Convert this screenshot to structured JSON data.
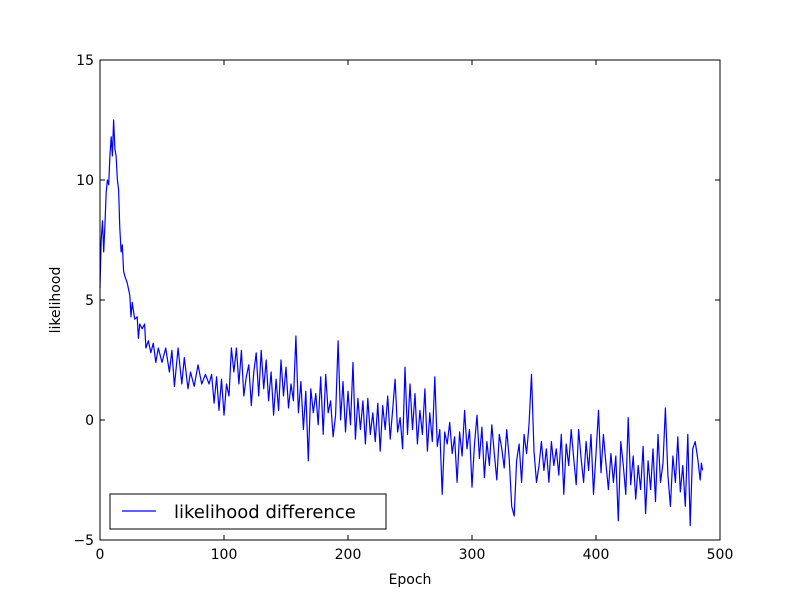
{
  "chart_data": {
    "type": "line",
    "xlabel": "Epoch",
    "ylabel": "likelihood",
    "xlim": [
      0,
      500
    ],
    "ylim": [
      -5,
      15
    ],
    "xticks": [
      0,
      100,
      200,
      300,
      400,
      500
    ],
    "yticks": [
      -5,
      0,
      5,
      10,
      15
    ],
    "grid": false,
    "legend_position": "lower-left",
    "series": [
      {
        "name": "likelihood difference",
        "color": "#0000ff",
        "anchors": [
          [
            0,
            5.5
          ],
          [
            1,
            7.5
          ],
          [
            2,
            8.3
          ],
          [
            3,
            7.0
          ],
          [
            4,
            8.2
          ],
          [
            5,
            9.5
          ],
          [
            6,
            10.0
          ],
          [
            7,
            9.8
          ],
          [
            8,
            11.0
          ],
          [
            9,
            11.8
          ],
          [
            10,
            11.0
          ],
          [
            11,
            12.5
          ],
          [
            12,
            11.3
          ],
          [
            13,
            11.0
          ],
          [
            14,
            10.0
          ],
          [
            15,
            9.6
          ],
          [
            16,
            8.0
          ],
          [
            17,
            7.0
          ],
          [
            18,
            7.3
          ],
          [
            19,
            6.2
          ],
          [
            20,
            6.0
          ],
          [
            22,
            5.7
          ],
          [
            24,
            5.2
          ],
          [
            25,
            4.3
          ],
          [
            26,
            4.9
          ],
          [
            28,
            4.2
          ],
          [
            30,
            4.3
          ],
          [
            31,
            3.4
          ],
          [
            32,
            4.0
          ],
          [
            34,
            3.8
          ],
          [
            36,
            4.0
          ],
          [
            37,
            3.0
          ],
          [
            39,
            3.3
          ],
          [
            41,
            2.8
          ],
          [
            43,
            3.2
          ],
          [
            45,
            2.4
          ],
          [
            47,
            3.0
          ],
          [
            50,
            2.4
          ],
          [
            53,
            3.0
          ],
          [
            56,
            2.0
          ],
          [
            58,
            2.9
          ],
          [
            60,
            1.4
          ],
          [
            63,
            3.0
          ],
          [
            66,
            1.5
          ],
          [
            68,
            2.6
          ],
          [
            71,
            1.3
          ],
          [
            73,
            2.0
          ],
          [
            76,
            1.4
          ],
          [
            79,
            2.3
          ],
          [
            82,
            1.5
          ],
          [
            85,
            1.9
          ],
          [
            88,
            1.5
          ],
          [
            90,
            1.9
          ],
          [
            92,
            0.7
          ],
          [
            94,
            1.8
          ],
          [
            96,
            0.4
          ],
          [
            98,
            1.7
          ],
          [
            100,
            0.2
          ],
          [
            102,
            1.5
          ],
          [
            104,
            1.0
          ],
          [
            106,
            3.0
          ],
          [
            108,
            2.0
          ],
          [
            110,
            3.0
          ],
          [
            112,
            1.5
          ],
          [
            114,
            2.9
          ],
          [
            116,
            1.0
          ],
          [
            118,
            1.8
          ],
          [
            120,
            2.3
          ],
          [
            122,
            0.6
          ],
          [
            124,
            2.0
          ],
          [
            126,
            2.8
          ],
          [
            128,
            1.0
          ],
          [
            130,
            2.9
          ],
          [
            132,
            1.3
          ],
          [
            134,
            2.5
          ],
          [
            136,
            0.8
          ],
          [
            138,
            2.0
          ],
          [
            140,
            0.2
          ],
          [
            142,
            1.7
          ],
          [
            144,
            0.4
          ],
          [
            146,
            2.5
          ],
          [
            148,
            1.0
          ],
          [
            150,
            2.2
          ],
          [
            152,
            0.5
          ],
          [
            154,
            1.5
          ],
          [
            156,
            0.8
          ],
          [
            158,
            3.5
          ],
          [
            160,
            0.3
          ],
          [
            162,
            1.6
          ],
          [
            164,
            -0.4
          ],
          [
            166,
            1.2
          ],
          [
            168,
            -1.7
          ],
          [
            170,
            1.3
          ],
          [
            172,
            0.3
          ],
          [
            174,
            1.1
          ],
          [
            176,
            -0.2
          ],
          [
            178,
            1.8
          ],
          [
            180,
            -0.6
          ],
          [
            182,
            1.9
          ],
          [
            184,
            0.3
          ],
          [
            186,
            0.8
          ],
          [
            188,
            -0.7
          ],
          [
            190,
            0.2
          ],
          [
            192,
            3.3
          ],
          [
            194,
            0.0
          ],
          [
            196,
            1.6
          ],
          [
            198,
            -0.5
          ],
          [
            200,
            1.2
          ],
          [
            202,
            -0.2
          ],
          [
            204,
            2.4
          ],
          [
            206,
            -0.8
          ],
          [
            208,
            0.9
          ],
          [
            210,
            -0.4
          ],
          [
            212,
            0.8
          ],
          [
            214,
            -1.0
          ],
          [
            216,
            0.9
          ],
          [
            218,
            -0.6
          ],
          [
            220,
            0.3
          ],
          [
            222,
            -0.9
          ],
          [
            224,
            0.7
          ],
          [
            226,
            -1.3
          ],
          [
            228,
            0.6
          ],
          [
            230,
            -0.4
          ],
          [
            232,
            1.0
          ],
          [
            234,
            -0.8
          ],
          [
            236,
            0.4
          ],
          [
            238,
            1.7
          ],
          [
            240,
            -0.5
          ],
          [
            242,
            0.1
          ],
          [
            244,
            -1.2
          ],
          [
            246,
            2.2
          ],
          [
            248,
            -0.6
          ],
          [
            250,
            1.5
          ],
          [
            252,
            -0.4
          ],
          [
            254,
            1.1
          ],
          [
            256,
            -1.0
          ],
          [
            258,
            0.4
          ],
          [
            260,
            -0.6
          ],
          [
            262,
            1.3
          ],
          [
            264,
            -1.3
          ],
          [
            266,
            0.3
          ],
          [
            268,
            -0.9
          ],
          [
            270,
            1.8
          ],
          [
            272,
            -1.1
          ],
          [
            274,
            -0.4
          ],
          [
            276,
            -3.1
          ],
          [
            278,
            -0.5
          ],
          [
            280,
            -1.0
          ],
          [
            282,
            -0.1
          ],
          [
            284,
            -1.4
          ],
          [
            286,
            -0.7
          ],
          [
            288,
            -2.6
          ],
          [
            290,
            -0.5
          ],
          [
            292,
            -1.5
          ],
          [
            294,
            0.4
          ],
          [
            296,
            -1.2
          ],
          [
            298,
            -0.4
          ],
          [
            300,
            -2.8
          ],
          [
            302,
            -1.0
          ],
          [
            304,
            0.2
          ],
          [
            306,
            -1.6
          ],
          [
            308,
            -0.3
          ],
          [
            310,
            -2.4
          ],
          [
            312,
            -0.9
          ],
          [
            314,
            -1.9
          ],
          [
            316,
            -0.2
          ],
          [
            318,
            -1.4
          ],
          [
            320,
            -2.5
          ],
          [
            322,
            -0.6
          ],
          [
            324,
            -1.2
          ],
          [
            326,
            -2.0
          ],
          [
            328,
            -0.4
          ],
          [
            330,
            -1.6
          ],
          [
            332,
            -3.6
          ],
          [
            334,
            -4.0
          ],
          [
            336,
            -1.7
          ],
          [
            338,
            -1.0
          ],
          [
            340,
            -2.6
          ],
          [
            342,
            -0.6
          ],
          [
            344,
            -1.4
          ],
          [
            346,
            -0.2
          ],
          [
            348,
            1.9
          ],
          [
            350,
            -1.3
          ],
          [
            352,
            -2.6
          ],
          [
            354,
            -1.9
          ],
          [
            356,
            -0.9
          ],
          [
            358,
            -2.1
          ],
          [
            360,
            -1.2
          ],
          [
            362,
            -2.6
          ],
          [
            364,
            -0.9
          ],
          [
            366,
            -1.9
          ],
          [
            368,
            -1.2
          ],
          [
            370,
            -2.3
          ],
          [
            372,
            -0.6
          ],
          [
            374,
            -3.1
          ],
          [
            376,
            -1.0
          ],
          [
            378,
            -1.9
          ],
          [
            380,
            -0.4
          ],
          [
            382,
            -1.6
          ],
          [
            384,
            -2.7
          ],
          [
            386,
            -0.4
          ],
          [
            388,
            -1.6
          ],
          [
            390,
            -2.6
          ],
          [
            392,
            -0.9
          ],
          [
            394,
            -2.1
          ],
          [
            396,
            -0.6
          ],
          [
            398,
            -3.1
          ],
          [
            400,
            -1.4
          ],
          [
            402,
            0.4
          ],
          [
            404,
            -2.2
          ],
          [
            406,
            -0.6
          ],
          [
            408,
            -1.8
          ],
          [
            410,
            -2.9
          ],
          [
            412,
            -1.4
          ],
          [
            414,
            -2.6
          ],
          [
            416,
            -1.5
          ],
          [
            418,
            -4.2
          ],
          [
            420,
            -0.9
          ],
          [
            422,
            -1.9
          ],
          [
            424,
            -3.1
          ],
          [
            426,
            0.1
          ],
          [
            428,
            -2.7
          ],
          [
            430,
            -1.5
          ],
          [
            432,
            -3.3
          ],
          [
            434,
            -1.9
          ],
          [
            436,
            -2.9
          ],
          [
            438,
            -1.1
          ],
          [
            440,
            -3.9
          ],
          [
            442,
            -1.7
          ],
          [
            444,
            -2.9
          ],
          [
            446,
            -1.2
          ],
          [
            448,
            -3.4
          ],
          [
            450,
            -0.6
          ],
          [
            452,
            -2.6
          ],
          [
            454,
            -1.8
          ],
          [
            456,
            0.5
          ],
          [
            458,
            -2.3
          ],
          [
            460,
            -3.6
          ],
          [
            462,
            -1.5
          ],
          [
            464,
            -2.6
          ],
          [
            466,
            -0.7
          ],
          [
            468,
            -3.0
          ],
          [
            470,
            -1.9
          ],
          [
            472,
            -3.6
          ],
          [
            474,
            -0.6
          ],
          [
            476,
            -4.4
          ],
          [
            478,
            -1.2
          ],
          [
            480,
            -0.9
          ],
          [
            482,
            -1.6
          ],
          [
            484,
            -2.5
          ],
          [
            485,
            -1.8
          ],
          [
            486,
            -2.1
          ]
        ]
      }
    ]
  }
}
